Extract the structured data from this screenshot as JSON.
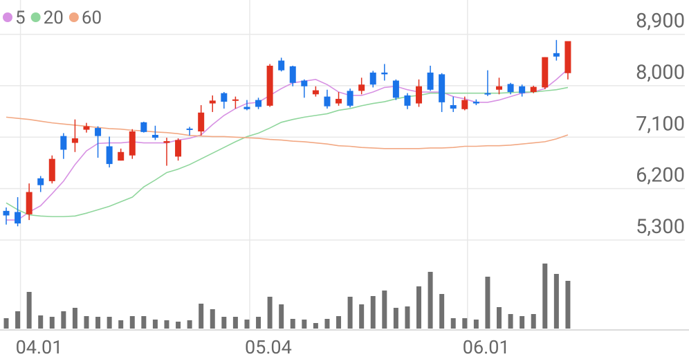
{
  "chart_data": {
    "type": "candlestick",
    "categories": [
      null,
      "04.01",
      null,
      null,
      null,
      null,
      null,
      null,
      null,
      null,
      null,
      null,
      null,
      null,
      null,
      null,
      null,
      null,
      null,
      null,
      null,
      "05.04",
      null,
      null,
      null,
      null,
      null,
      null,
      null,
      null,
      null,
      null,
      null,
      null,
      null,
      null,
      null,
      null,
      null,
      null,
      "06.01",
      null,
      null,
      null,
      null,
      null,
      null,
      null,
      null,
      null
    ],
    "open": [
      5810,
      5790,
      5750,
      6380,
      6330,
      7120,
      7000,
      7230,
      7260,
      6940,
      6690,
      6780,
      7360,
      7140,
      7000,
      6760,
      7250,
      7200,
      7690,
      7870,
      7740,
      7630,
      7750,
      7650,
      8440,
      8340,
      8090,
      7850,
      7810,
      7690,
      7910,
      7910,
      8230,
      8230,
      8090,
      7830,
      7690,
      8230,
      8200,
      7660,
      7590,
      7720,
      7870,
      7930,
      8030,
      7990,
      7890,
      7970,
      8570,
      8220
    ],
    "high": [
      5870,
      6050,
      6290,
      6420,
      6780,
      7170,
      7410,
      7350,
      7290,
      7110,
      6900,
      7240,
      7370,
      7300,
      7090,
      7080,
      7280,
      7660,
      7830,
      7890,
      7810,
      7750,
      7790,
      8380,
      8490,
      8350,
      8110,
      7990,
      7930,
      7890,
      7950,
      8140,
      8260,
      8380,
      8110,
      7870,
      8110,
      8350,
      8220,
      7810,
      7810,
      7760,
      8270,
      8140,
      8050,
      8020,
      8000,
      8500,
      8800,
      8780
    ],
    "low": [
      5570,
      5540,
      5650,
      6140,
      6290,
      6720,
      6840,
      7180,
      6740,
      6570,
      6690,
      6720,
      7180,
      7050,
      6600,
      6690,
      7130,
      7130,
      7540,
      7600,
      7600,
      7570,
      7590,
      7630,
      8250,
      7990,
      7790,
      7810,
      7600,
      7650,
      7620,
      7850,
      7970,
      8090,
      7750,
      7590,
      7630,
      7910,
      7540,
      7540,
      7570,
      7660,
      7820,
      7850,
      7850,
      7810,
      7870,
      7940,
      8440,
      8110
    ],
    "close": [
      5730,
      5590,
      6140,
      6260,
      6720,
      6880,
      7080,
      7290,
      7120,
      6630,
      6840,
      7200,
      7190,
      7090,
      7030,
      7050,
      7230,
      7530,
      7740,
      7720,
      7760,
      7590,
      7630,
      8350,
      8270,
      8050,
      7990,
      7920,
      7640,
      7770,
      7650,
      8020,
      8020,
      8200,
      7790,
      7650,
      7990,
      7930,
      7710,
      7600,
      7750,
      7690,
      7850,
      7990,
      7890,
      7870,
      7980,
      8500,
      8510,
      8780
    ],
    "up_color": "#e0301e",
    "down_color": "#1a73e8",
    "series": [
      {
        "name": "5",
        "color": "#d791e3",
        "values": [
          5650,
          5650,
          5790,
          5900,
          6110,
          6330,
          6620,
          6860,
          6990,
          7000,
          7000,
          7020,
          7000,
          7000,
          7000,
          7050,
          7080,
          7140,
          7320,
          7480,
          7600,
          7690,
          7710,
          7830,
          7950,
          8050,
          8080,
          8110,
          8020,
          7890,
          7830,
          7830,
          7890,
          7970,
          7990,
          7930,
          7890,
          7890,
          7890,
          7810,
          7770,
          7710,
          7710,
          7750,
          7810,
          7870,
          7890,
          7950,
          8110,
          8290
        ]
      },
      {
        "name": "20",
        "color": "#8fd69c",
        "values": [
          5950,
          5830,
          5740,
          5720,
          5710,
          5710,
          5720,
          5770,
          5830,
          5890,
          5970,
          6050,
          6230,
          6350,
          6480,
          6540,
          6620,
          6720,
          6820,
          6920,
          7020,
          7110,
          7170,
          7260,
          7360,
          7410,
          7450,
          7480,
          7510,
          7570,
          7600,
          7650,
          7690,
          7720,
          7770,
          7810,
          7830,
          7870,
          7870,
          7870,
          7870,
          7870,
          7870,
          7870,
          7880,
          7890,
          7890,
          7910,
          7930,
          7970
        ]
      },
      {
        "name": "60",
        "color": "#f2a883",
        "values": [
          7450,
          7430,
          7410,
          7380,
          7350,
          7330,
          7310,
          7290,
          7270,
          7250,
          7240,
          7220,
          7210,
          7190,
          7180,
          7160,
          7130,
          7120,
          7110,
          7110,
          7100,
          7090,
          7080,
          7060,
          7050,
          7030,
          7020,
          7000,
          6980,
          6950,
          6940,
          6920,
          6910,
          6900,
          6900,
          6900,
          6900,
          6910,
          6910,
          6920,
          6940,
          6940,
          6950,
          6950,
          6960,
          6980,
          7000,
          7020,
          7070,
          7140
        ]
      }
    ],
    "volume": {
      "color": "#707070",
      "values": [
        15,
        25,
        53,
        19,
        17,
        25,
        30,
        18,
        17,
        17,
        12,
        18,
        18,
        13,
        12,
        10,
        12,
        36,
        28,
        17,
        17,
        13,
        17,
        46,
        35,
        14,
        13,
        8,
        14,
        18,
        46,
        35,
        47,
        55,
        30,
        32,
        61,
        82,
        50,
        15,
        15,
        13,
        75,
        31,
        21,
        18,
        21,
        94,
        79,
        69
      ]
    },
    "ylim": [
      5300,
      9500
    ],
    "yticks": [
      {
        "value": 5300,
        "label": "5,300"
      },
      {
        "value": 6200,
        "label": "6,200"
      },
      {
        "value": 7100,
        "label": "7,100"
      },
      {
        "value": 8000,
        "label": "8,000"
      },
      {
        "value": 8900,
        "label": "8,900"
      }
    ],
    "grid": true
  }
}
